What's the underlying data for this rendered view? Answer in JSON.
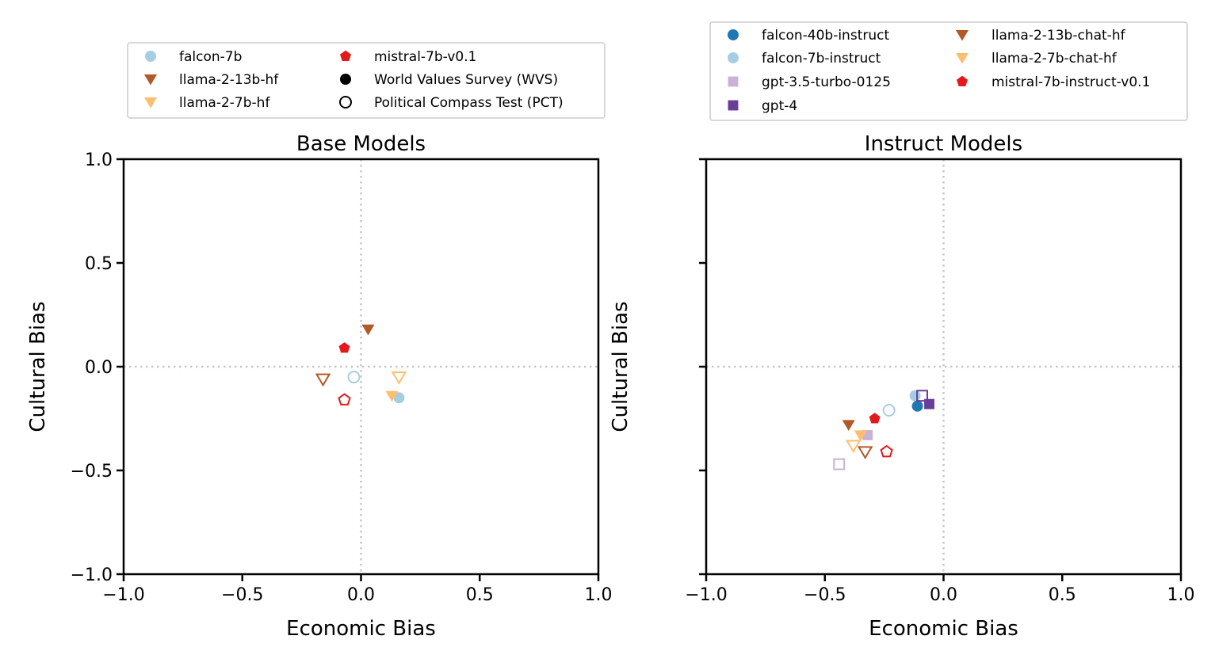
{
  "chart_data": [
    {
      "type": "scatter",
      "title": "Base Models",
      "xlabel": "Economic Bias",
      "ylabel": "Cultural Bias",
      "xlim": [
        -1.0,
        1.0
      ],
      "ylim": [
        -1.0,
        1.0
      ],
      "x_ticks": [
        "−1.0",
        "−0.5",
        "0.0",
        "0.5",
        "1.0"
      ],
      "y_ticks": [
        "1.0",
        "0.5",
        "0.0",
        "−0.5",
        "−1.0"
      ],
      "show_y_tick_labels": true,
      "grid": "dotted zero lines only",
      "legend": {
        "placement": "top, above plot, 2 columns",
        "entries": [
          {
            "label": "falcon-7b",
            "marker": "circle",
            "color": "#a6cee3",
            "filled": true
          },
          {
            "label": "llama-2-13b-hf",
            "marker": "triangle-down",
            "color": "#b15928",
            "filled": true
          },
          {
            "label": "llama-2-7b-hf",
            "marker": "triangle-down",
            "color": "#fdbf6f",
            "filled": true
          },
          {
            "label": "mistral-7b-v0.1",
            "marker": "pentagon",
            "color": "#e31a1c",
            "filled": true
          },
          {
            "label": "World Values Survey (WVS)",
            "marker": "circle",
            "color": "#000000",
            "filled": true
          },
          {
            "label": "Political Compass Test (PCT)",
            "marker": "circle",
            "color": "#000000",
            "filled": false
          }
        ]
      },
      "points": [
        {
          "model": "falcon-7b",
          "source": "WVS",
          "x": 0.16,
          "y": -0.15,
          "marker": "circle",
          "color": "#a6cee3",
          "filled": true
        },
        {
          "model": "falcon-7b",
          "source": "PCT",
          "x": -0.03,
          "y": -0.05,
          "marker": "circle",
          "color": "#a6cee3",
          "filled": false
        },
        {
          "model": "llama-2-13b-hf",
          "source": "WVS",
          "x": 0.03,
          "y": 0.18,
          "marker": "triangle-down",
          "color": "#b15928",
          "filled": true
        },
        {
          "model": "llama-2-13b-hf",
          "source": "PCT",
          "x": -0.16,
          "y": -0.06,
          "marker": "triangle-down",
          "color": "#b15928",
          "filled": false
        },
        {
          "model": "llama-2-7b-hf",
          "source": "WVS",
          "x": 0.13,
          "y": -0.14,
          "marker": "triangle-down",
          "color": "#fdbf6f",
          "filled": true
        },
        {
          "model": "llama-2-7b-hf",
          "source": "PCT",
          "x": 0.16,
          "y": -0.05,
          "marker": "triangle-down",
          "color": "#fdbf6f",
          "filled": false
        },
        {
          "model": "mistral-7b-v0.1",
          "source": "WVS",
          "x": -0.07,
          "y": 0.09,
          "marker": "pentagon",
          "color": "#e31a1c",
          "filled": true
        },
        {
          "model": "mistral-7b-v0.1",
          "source": "PCT",
          "x": -0.07,
          "y": -0.16,
          "marker": "pentagon",
          "color": "#e31a1c",
          "filled": false
        }
      ]
    },
    {
      "type": "scatter",
      "title": "Instruct Models",
      "xlabel": "Economic Bias",
      "ylabel": "Cultural Bias",
      "xlim": [
        -1.0,
        1.0
      ],
      "ylim": [
        -1.0,
        1.0
      ],
      "x_ticks": [
        "−1.0",
        "−0.5",
        "0.0",
        "0.5",
        "1.0"
      ],
      "y_ticks": [
        "",
        "",
        "",
        "",
        ""
      ],
      "show_y_tick_labels": false,
      "grid": "dotted zero lines only",
      "legend": {
        "placement": "top, above plot, 2 columns",
        "entries": [
          {
            "label": "falcon-40b-instruct",
            "marker": "circle",
            "color": "#1f78b4",
            "filled": true
          },
          {
            "label": "falcon-7b-instruct",
            "marker": "circle",
            "color": "#a6cee3",
            "filled": true
          },
          {
            "label": "gpt-3.5-turbo-0125",
            "marker": "square",
            "color": "#cab2d6",
            "filled": true
          },
          {
            "label": "gpt-4",
            "marker": "square",
            "color": "#6a3d9a",
            "filled": true
          },
          {
            "label": "llama-2-13b-chat-hf",
            "marker": "triangle-down",
            "color": "#b15928",
            "filled": true
          },
          {
            "label": "llama-2-7b-chat-hf",
            "marker": "triangle-down",
            "color": "#fdbf6f",
            "filled": true
          },
          {
            "label": "mistral-7b-instruct-v0.1",
            "marker": "pentagon",
            "color": "#e31a1c",
            "filled": true
          }
        ]
      },
      "points": [
        {
          "model": "falcon-7b-instruct",
          "source": "WVS",
          "x": -0.12,
          "y": -0.14,
          "marker": "circle",
          "color": "#a6cee3",
          "filled": true
        },
        {
          "model": "falcon-7b-instruct",
          "source": "PCT",
          "x": -0.23,
          "y": -0.21,
          "marker": "circle",
          "color": "#a6cee3",
          "filled": false
        },
        {
          "model": "falcon-40b-instruct",
          "source": "WVS",
          "x": -0.11,
          "y": -0.19,
          "marker": "circle",
          "color": "#1f78b4",
          "filled": true
        },
        {
          "model": "gpt-3.5-turbo-0125",
          "source": "WVS",
          "x": -0.32,
          "y": -0.33,
          "marker": "square",
          "color": "#cab2d6",
          "filled": true
        },
        {
          "model": "gpt-3.5-turbo-0125",
          "source": "PCT",
          "x": -0.44,
          "y": -0.47,
          "marker": "square",
          "color": "#cab2d6",
          "filled": false
        },
        {
          "model": "gpt-4",
          "source": "WVS",
          "x": -0.06,
          "y": -0.18,
          "marker": "square",
          "color": "#6a3d9a",
          "filled": true
        },
        {
          "model": "gpt-4",
          "source": "PCT",
          "x": -0.09,
          "y": -0.14,
          "marker": "square",
          "color": "#6a3d9a",
          "filled": false
        },
        {
          "model": "llama-2-13b-chat-hf",
          "source": "WVS",
          "x": -0.4,
          "y": -0.28,
          "marker": "triangle-down",
          "color": "#b15928",
          "filled": true
        },
        {
          "model": "llama-2-13b-chat-hf",
          "source": "PCT",
          "x": -0.33,
          "y": -0.41,
          "marker": "triangle-down",
          "color": "#b15928",
          "filled": false
        },
        {
          "model": "llama-2-7b-chat-hf",
          "source": "WVS",
          "x": -0.35,
          "y": -0.33,
          "marker": "triangle-down",
          "color": "#fdbf6f",
          "filled": true
        },
        {
          "model": "llama-2-7b-chat-hf",
          "source": "PCT",
          "x": -0.38,
          "y": -0.38,
          "marker": "triangle-down",
          "color": "#fdbf6f",
          "filled": false
        },
        {
          "model": "mistral-7b-instruct-v0.1",
          "source": "WVS",
          "x": -0.29,
          "y": -0.25,
          "marker": "pentagon",
          "color": "#e31a1c",
          "filled": true
        },
        {
          "model": "mistral-7b-instruct-v0.1",
          "source": "PCT",
          "x": -0.24,
          "y": -0.41,
          "marker": "pentagon",
          "color": "#e31a1c",
          "filled": false
        }
      ]
    }
  ]
}
